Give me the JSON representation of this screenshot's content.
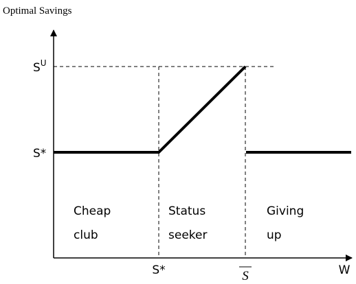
{
  "axis_title": "Optimal Savings",
  "y_labels": {
    "upper": {
      "base": "S",
      "sup": "U"
    },
    "star": "S*"
  },
  "x_labels": {
    "star": "S*",
    "bar": "S",
    "w": "W"
  },
  "regions": [
    {
      "lines": [
        "Cheap",
        "club"
      ]
    },
    {
      "lines": [
        "Status",
        "seeker"
      ]
    },
    {
      "lines": [
        "Giving",
        "up"
      ]
    }
  ]
}
